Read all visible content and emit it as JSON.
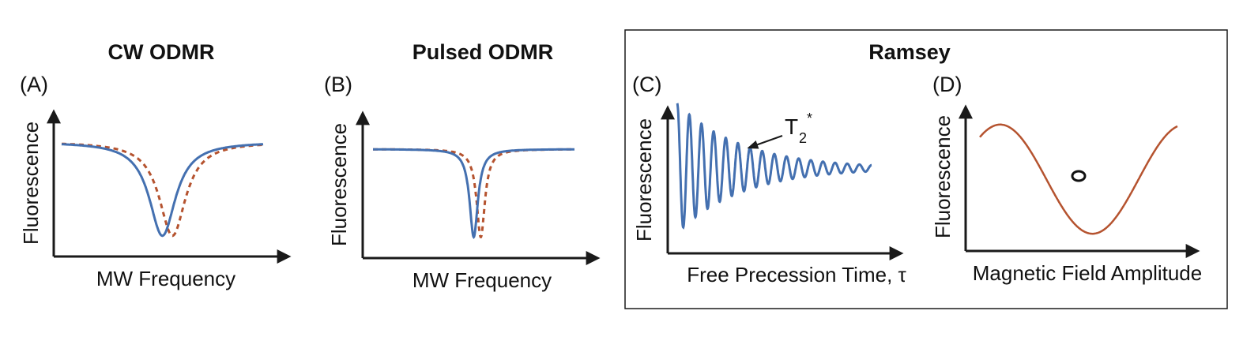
{
  "colors": {
    "blue_series": "#4470b0",
    "red_series": "#b5532f",
    "axis": "#1a1a1a",
    "marker": "#111111"
  },
  "group_title": "Ramsey",
  "chart_data": [
    {
      "panel": "(A)",
      "title": "CW ODMR",
      "type": "line",
      "xlabel": "MW Frequency",
      "ylabel": "Fluorescence",
      "x_range": [
        0,
        1
      ],
      "y_range": [
        0,
        1
      ],
      "series": [
        {
          "style": "solid",
          "color": "#4470b0",
          "shape": "lorentzian_dip",
          "center": 0.5,
          "width": 0.08,
          "baseline": 0.83,
          "min": 0.15
        },
        {
          "style": "dashed",
          "color": "#b5532f",
          "shape": "lorentzian_dip",
          "center": 0.55,
          "width": 0.08,
          "baseline": 0.83,
          "min": 0.15
        }
      ]
    },
    {
      "panel": "(B)",
      "title": "Pulsed ODMR",
      "type": "line",
      "xlabel": "MW Frequency",
      "ylabel": "Fluorescence",
      "x_range": [
        0,
        1
      ],
      "y_range": [
        0,
        1
      ],
      "series": [
        {
          "style": "solid",
          "color": "#4470b0",
          "shape": "lorentzian_dip",
          "center": 0.5,
          "width": 0.025,
          "baseline": 0.78,
          "min": 0.15
        },
        {
          "style": "dashed",
          "color": "#b5532f",
          "shape": "lorentzian_dip",
          "center": 0.535,
          "width": 0.025,
          "baseline": 0.78,
          "min": 0.15
        }
      ]
    },
    {
      "panel": "(C)",
      "type": "line",
      "xlabel": "Free Precession Time, τ",
      "ylabel": "Fluorescence",
      "annotation": {
        "text": "T",
        "subscript": "2",
        "superscript": "*"
      },
      "series": [
        {
          "style": "solid",
          "color": "#4470b0",
          "shape": "damped_cosine",
          "offset": 0.55,
          "amplitude": 0.42,
          "cycles": 16,
          "decay": 0.33
        }
      ]
    },
    {
      "panel": "(D)",
      "type": "line",
      "xlabel": "Magnetic Field Amplitude",
      "ylabel": "Fluorescence",
      "marker": "open circle on rising slope",
      "series": [
        {
          "style": "solid",
          "color": "#b5532f",
          "shape": "sinusoid",
          "offset": 0.5,
          "amplitude": 0.38
        }
      ]
    }
  ]
}
